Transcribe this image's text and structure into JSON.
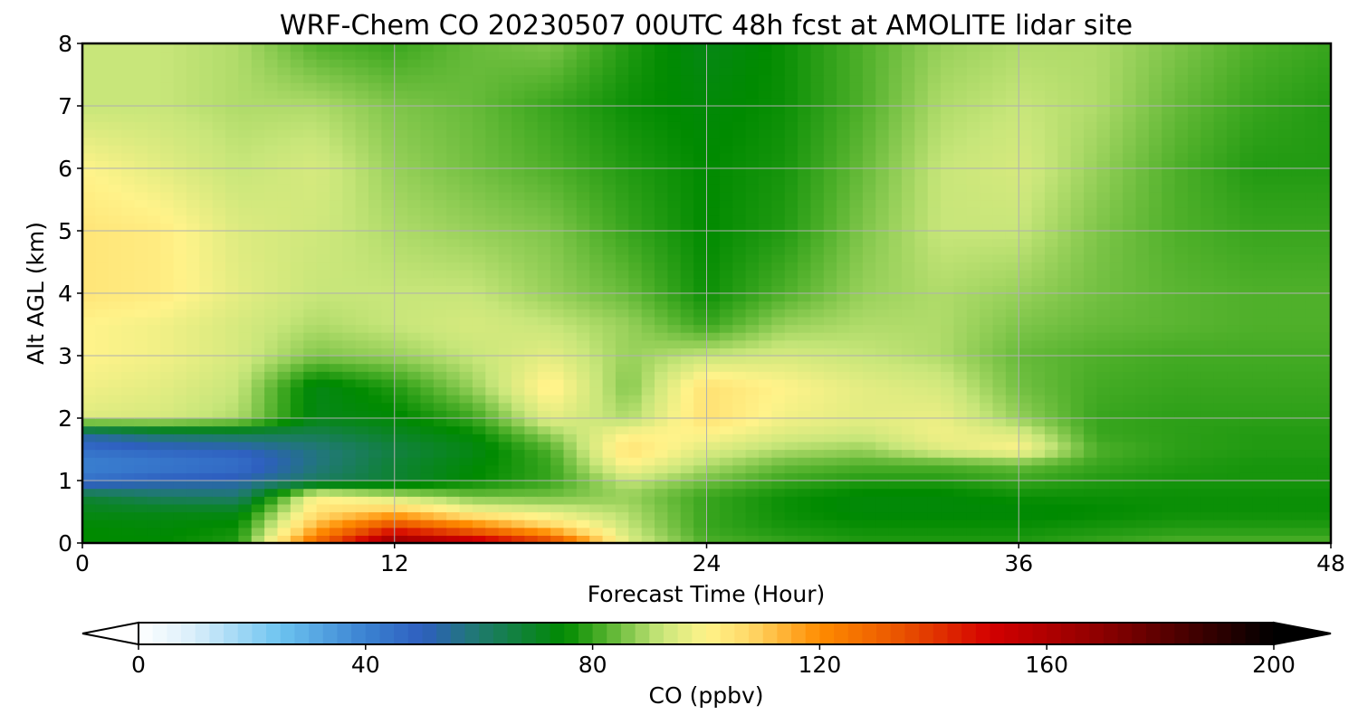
{
  "chart_data": {
    "type": "heatmap",
    "title": "WRF-Chem CO  20230507 00UTC 48h fcst at AMOLITE lidar site",
    "xlabel": "Forecast Time (Hour)",
    "ylabel": "Alt AGL (km)",
    "xlim": [
      0,
      48
    ],
    "ylim": [
      0,
      8
    ],
    "xticks": [
      "0",
      "12",
      "24",
      "36",
      "48"
    ],
    "yticks": [
      "0",
      "1",
      "2",
      "3",
      "4",
      "5",
      "6",
      "7",
      "8"
    ],
    "grid": true,
    "colorbar": {
      "label": "CO  (ppbv)",
      "range": [
        0,
        200
      ],
      "ticks": [
        "0",
        "40",
        "80",
        "120",
        "160",
        "200"
      ],
      "extend": "both",
      "stops": [
        [
          0,
          "#ffffff"
        ],
        [
          10,
          "#d8eefa"
        ],
        [
          25,
          "#6cc3f0"
        ],
        [
          40,
          "#3b82d1"
        ],
        [
          50,
          "#2e5fbf"
        ],
        [
          60,
          "#1f7a6e"
        ],
        [
          75,
          "#008a00"
        ],
        [
          82,
          "#4fb02a"
        ],
        [
          92,
          "#c8e67a"
        ],
        [
          100,
          "#fff38a"
        ],
        [
          108,
          "#ffd766"
        ],
        [
          120,
          "#ff8c00"
        ],
        [
          135,
          "#e85000"
        ],
        [
          150,
          "#d40000"
        ],
        [
          170,
          "#8b0000"
        ],
        [
          200,
          "#000000"
        ]
      ]
    },
    "x": [
      0,
      3,
      6,
      9,
      12,
      15,
      18,
      21,
      24,
      27,
      30,
      33,
      36,
      39,
      42,
      45,
      48
    ],
    "y": [
      0,
      0.25,
      0.5,
      0.75,
      1,
      1.25,
      1.5,
      1.75,
      2,
      2.5,
      3,
      3.5,
      4,
      5,
      6,
      7,
      8
    ],
    "values": [
      [
        75,
        75,
        78,
        130,
        170,
        160,
        140,
        95,
        82,
        80,
        78,
        78,
        78,
        80,
        82,
        82,
        82
      ],
      [
        75,
        74,
        76,
        115,
        140,
        125,
        110,
        92,
        80,
        77,
        76,
        76,
        76,
        77,
        78,
        78,
        78
      ],
      [
        72,
        72,
        72,
        105,
        112,
        100,
        95,
        90,
        80,
        76,
        74,
        74,
        74,
        75,
        76,
        76,
        76
      ],
      [
        68,
        62,
        60,
        100,
        92,
        85,
        85,
        88,
        80,
        76,
        74,
        74,
        76,
        76,
        76,
        76,
        76
      ],
      [
        45,
        50,
        52,
        62,
        68,
        75,
        80,
        92,
        85,
        80,
        78,
        78,
        80,
        78,
        77,
        77,
        77
      ],
      [
        40,
        42,
        45,
        58,
        68,
        74,
        80,
        100,
        90,
        84,
        82,
        82,
        84,
        80,
        78,
        77,
        77
      ],
      [
        45,
        48,
        50,
        58,
        66,
        72,
        82,
        105,
        95,
        90,
        88,
        95,
        100,
        82,
        79,
        78,
        78
      ],
      [
        55,
        62,
        64,
        64,
        70,
        75,
        88,
        100,
        100,
        95,
        93,
        98,
        95,
        80,
        79,
        78,
        78
      ],
      [
        95,
        94,
        90,
        72,
        74,
        80,
        96,
        90,
        105,
        98,
        96,
        97,
        88,
        80,
        79,
        79,
        79
      ],
      [
        98,
        96,
        92,
        72,
        78,
        88,
        102,
        86,
        105,
        100,
        96,
        94,
        85,
        81,
        80,
        80,
        80
      ],
      [
        100,
        98,
        94,
        86,
        88,
        92,
        96,
        88,
        92,
        94,
        92,
        90,
        84,
        82,
        81,
        81,
        81
      ],
      [
        100,
        98,
        94,
        90,
        92,
        94,
        92,
        88,
        80,
        88,
        90,
        90,
        86,
        84,
        83,
        82,
        82
      ],
      [
        104,
        102,
        96,
        92,
        92,
        92,
        88,
        84,
        76,
        82,
        88,
        90,
        88,
        85,
        83,
        82,
        82
      ],
      [
        104,
        102,
        95,
        93,
        90,
        88,
        86,
        80,
        75,
        78,
        86,
        92,
        92,
        86,
        82,
        80,
        80
      ],
      [
        100,
        96,
        92,
        94,
        88,
        85,
        82,
        78,
        75,
        77,
        84,
        92,
        94,
        88,
        82,
        78,
        78
      ],
      [
        92,
        92,
        90,
        90,
        86,
        84,
        80,
        76,
        74,
        76,
        82,
        90,
        92,
        90,
        84,
        80,
        78
      ],
      [
        92,
        92,
        90,
        82,
        80,
        84,
        86,
        78,
        72,
        76,
        82,
        88,
        90,
        90,
        86,
        82,
        80
      ]
    ]
  }
}
